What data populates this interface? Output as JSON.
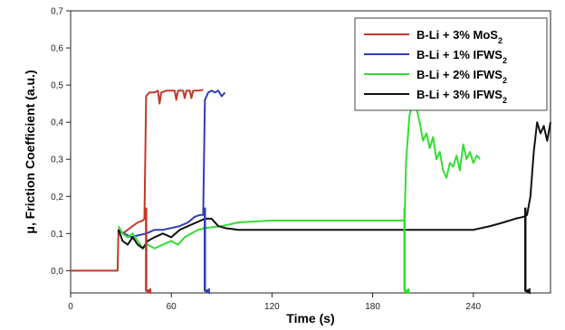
{
  "chart_data": {
    "type": "line",
    "title": "",
    "xlabel": "Time (s)",
    "ylabel": "μ, Friction Coefficient (a.u.)",
    "xlim": [
      0,
      286
    ],
    "ylim": [
      -0.06,
      0.7
    ],
    "xticks": [
      "0",
      "60",
      "120",
      "180",
      "240"
    ],
    "xtick_values": [
      0,
      60,
      120,
      180,
      240
    ],
    "yticks": [
      "0,0",
      "0,1",
      "0,2",
      "0,3",
      "0,4",
      "0,5",
      "0,6",
      "0,7"
    ],
    "ytick_values": [
      0,
      0.1,
      0.2,
      0.3,
      0.4,
      0.5,
      0.6,
      0.7
    ],
    "grid": false,
    "legend_position": "top-right",
    "series": [
      {
        "name": "B-Li + 3% MoS",
        "sub": "2",
        "color": "#c0392b",
        "arrow_x": 45,
        "points": [
          [
            0,
            0
          ],
          [
            28,
            0
          ],
          [
            28.5,
            0.11
          ],
          [
            31,
            0.1
          ],
          [
            34,
            0.11
          ],
          [
            37,
            0.12
          ],
          [
            40,
            0.13
          ],
          [
            43,
            0.135
          ],
          [
            44,
            0.14
          ],
          [
            45,
            0.47
          ],
          [
            47,
            0.48
          ],
          [
            50,
            0.48
          ],
          [
            52,
            0.485
          ],
          [
            53,
            0.45
          ],
          [
            54,
            0.48
          ],
          [
            57,
            0.485
          ],
          [
            62,
            0.485
          ],
          [
            63,
            0.46
          ],
          [
            64,
            0.485
          ],
          [
            67,
            0.485
          ],
          [
            68,
            0.465
          ],
          [
            69,
            0.485
          ],
          [
            71,
            0.485
          ],
          [
            72,
            0.465
          ],
          [
            73,
            0.485
          ],
          [
            76,
            0.485
          ],
          [
            79,
            0.487
          ]
        ]
      },
      {
        "name": "B-Li + 1% IFWS",
        "sub": "2",
        "color": "#2e3fb5",
        "arrow_x": 80,
        "points": [
          [
            28.5,
            0.11
          ],
          [
            32,
            0.1
          ],
          [
            36,
            0.09
          ],
          [
            40,
            0.095
          ],
          [
            45,
            0.1
          ],
          [
            50,
            0.11
          ],
          [
            55,
            0.11
          ],
          [
            60,
            0.115
          ],
          [
            65,
            0.12
          ],
          [
            70,
            0.13
          ],
          [
            74,
            0.145
          ],
          [
            77,
            0.15
          ],
          [
            79,
            0.15
          ],
          [
            80,
            0.46
          ],
          [
            82,
            0.48
          ],
          [
            84,
            0.485
          ],
          [
            86,
            0.48
          ],
          [
            88,
            0.485
          ],
          [
            90,
            0.47
          ],
          [
            92,
            0.48
          ]
        ]
      },
      {
        "name": "B-Li + 2% IFWS",
        "sub": "2",
        "color": "#33dd33",
        "arrow_x": 199,
        "points": [
          [
            28.5,
            0.12
          ],
          [
            31,
            0.1
          ],
          [
            34,
            0.09
          ],
          [
            37,
            0.1
          ],
          [
            40,
            0.08
          ],
          [
            43,
            0.06
          ],
          [
            46,
            0.07
          ],
          [
            50,
            0.06
          ],
          [
            55,
            0.07
          ],
          [
            60,
            0.08
          ],
          [
            64,
            0.07
          ],
          [
            68,
            0.09
          ],
          [
            72,
            0.1
          ],
          [
            76,
            0.11
          ],
          [
            80,
            0.115
          ],
          [
            90,
            0.12
          ],
          [
            100,
            0.13
          ],
          [
            120,
            0.135
          ],
          [
            150,
            0.135
          ],
          [
            180,
            0.135
          ],
          [
            199,
            0.135
          ],
          [
            200,
            0.3
          ],
          [
            202,
            0.42
          ],
          [
            204,
            0.45
          ],
          [
            206,
            0.44
          ],
          [
            208,
            0.4
          ],
          [
            210,
            0.35
          ],
          [
            212,
            0.37
          ],
          [
            214,
            0.33
          ],
          [
            216,
            0.36
          ],
          [
            218,
            0.3
          ],
          [
            220,
            0.32
          ],
          [
            222,
            0.27
          ],
          [
            224,
            0.25
          ],
          [
            226,
            0.29
          ],
          [
            228,
            0.28
          ],
          [
            230,
            0.31
          ],
          [
            232,
            0.27
          ],
          [
            234,
            0.34
          ],
          [
            236,
            0.3
          ],
          [
            238,
            0.32
          ],
          [
            240,
            0.29
          ],
          [
            242,
            0.31
          ],
          [
            244,
            0.3
          ]
        ]
      },
      {
        "name": "B-Li + 3% IFWS",
        "sub": "2",
        "color": "#111111",
        "arrow_x": 271,
        "points": [
          [
            28.5,
            0.11
          ],
          [
            31,
            0.08
          ],
          [
            34,
            0.07
          ],
          [
            37,
            0.09
          ],
          [
            40,
            0.07
          ],
          [
            43,
            0.06
          ],
          [
            46,
            0.08
          ],
          [
            50,
            0.09
          ],
          [
            55,
            0.1
          ],
          [
            60,
            0.09
          ],
          [
            65,
            0.11
          ],
          [
            70,
            0.12
          ],
          [
            75,
            0.13
          ],
          [
            80,
            0.14
          ],
          [
            84,
            0.14
          ],
          [
            88,
            0.12
          ],
          [
            92,
            0.115
          ],
          [
            100,
            0.11
          ],
          [
            120,
            0.11
          ],
          [
            150,
            0.11
          ],
          [
            180,
            0.11
          ],
          [
            210,
            0.11
          ],
          [
            240,
            0.11
          ],
          [
            250,
            0.12
          ],
          [
            258,
            0.13
          ],
          [
            265,
            0.14
          ],
          [
            270,
            0.145
          ],
          [
            272,
            0.15
          ],
          [
            274,
            0.2
          ],
          [
            276,
            0.32
          ],
          [
            278,
            0.4
          ],
          [
            280,
            0.37
          ],
          [
            282,
            0.39
          ],
          [
            284,
            0.35
          ],
          [
            286,
            0.4
          ]
        ]
      }
    ]
  }
}
